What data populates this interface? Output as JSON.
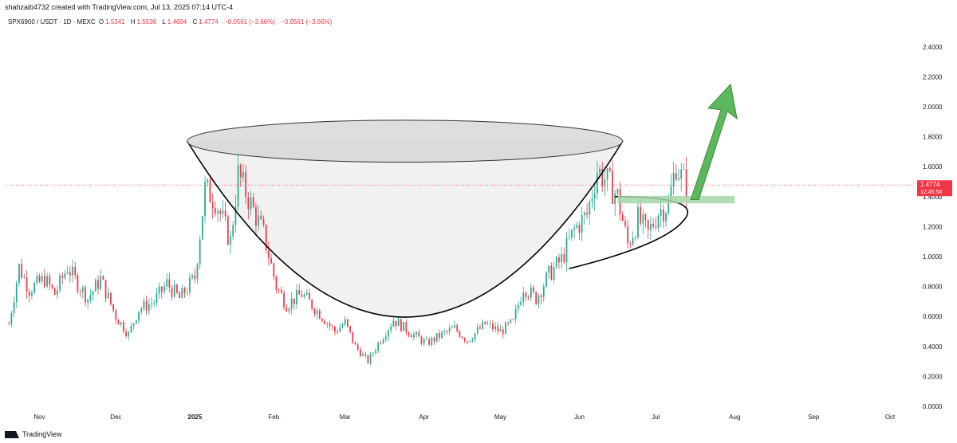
{
  "header": {
    "title": "shahzaib4732 created with TradingView.com, Jul 13, 2025 07:14 UTC-4",
    "symbol": "SPX6900 / USDT · 1D · MEXC",
    "o_label": "O",
    "o_value": "1.5341",
    "h_label": "H",
    "h_value": "1.5536",
    "l_label": "L",
    "l_value": "1.4604",
    "c_label": "C",
    "c_value": "1.4774",
    "change": "−0.0561 (−3.66%)",
    "change2": "−0.0561 (−3.66%)"
  },
  "footer": {
    "brand": "TradingView"
  },
  "price_badge": {
    "price": "1.4774",
    "countdown": "12:45:54"
  },
  "colors": {
    "up": "#22ab94",
    "down": "#f23645",
    "cup_fill": "#e6e6e6",
    "arrow": "#5cb85c",
    "zone": "#a5d6a7"
  },
  "chart_data": {
    "type": "candlestick",
    "title": "SPX6900 / USDT · 1D · MEXC",
    "y_ticks": [
      "2.4000",
      "2.2000",
      "2.0000",
      "1.8000",
      "1.6000",
      "1.4000",
      "1.2000",
      "1.0000",
      "0.8000",
      "0.6000",
      "0.4000",
      "0.2000",
      "0.0000"
    ],
    "ylim": [
      0,
      2.5
    ],
    "x_ticks": [
      "Nov",
      "Dec",
      "2025",
      "Feb",
      "Mar",
      "Apr",
      "May",
      "Jun",
      "Jul",
      "Aug",
      "Sep",
      "Oct"
    ],
    "x_tick_dates": [
      "2024-11-01",
      "2024-12-01",
      "2025-01-01",
      "2025-02-01",
      "2025-03-01",
      "2025-04-01",
      "2025-05-01",
      "2025-06-01",
      "2025-07-01",
      "2025-08-01",
      "2025-09-01",
      "2025-10-01"
    ],
    "date_range": [
      "2024-10-19",
      "2025-10-11"
    ],
    "last_price": 1.4774,
    "price_path": [
      [
        "2024-10-20",
        0.55
      ],
      [
        "2024-10-24",
        0.93
      ],
      [
        "2024-10-28",
        0.78
      ],
      [
        "2024-11-03",
        0.85
      ],
      [
        "2024-11-07",
        0.75
      ],
      [
        "2024-11-12",
        0.93
      ],
      [
        "2024-11-16",
        0.82
      ],
      [
        "2024-11-20",
        0.72
      ],
      [
        "2024-11-25",
        0.85
      ],
      [
        "2024-12-01",
        0.6
      ],
      [
        "2024-12-06",
        0.48
      ],
      [
        "2024-12-10",
        0.65
      ],
      [
        "2024-12-16",
        0.7
      ],
      [
        "2024-12-21",
        0.82
      ],
      [
        "2024-12-26",
        0.72
      ],
      [
        "2025-01-01",
        0.86
      ],
      [
        "2025-01-05",
        1.45
      ],
      [
        "2025-01-09",
        1.38
      ],
      [
        "2025-01-15",
        1.1
      ],
      [
        "2025-01-18",
        1.55
      ],
      [
        "2025-01-23",
        1.35
      ],
      [
        "2025-01-28",
        1.15
      ],
      [
        "2025-02-02",
        0.8
      ],
      [
        "2025-02-06",
        0.68
      ],
      [
        "2025-02-12",
        0.75
      ],
      [
        "2025-02-19",
        0.62
      ],
      [
        "2025-02-25",
        0.5
      ],
      [
        "2025-03-01",
        0.56
      ],
      [
        "2025-03-05",
        0.4
      ],
      [
        "2025-03-10",
        0.3
      ],
      [
        "2025-03-14",
        0.42
      ],
      [
        "2025-03-20",
        0.58
      ],
      [
        "2025-03-26",
        0.5
      ],
      [
        "2025-04-02",
        0.42
      ],
      [
        "2025-04-08",
        0.48
      ],
      [
        "2025-04-13",
        0.52
      ],
      [
        "2025-04-18",
        0.44
      ],
      [
        "2025-04-25",
        0.55
      ],
      [
        "2025-05-01",
        0.5
      ],
      [
        "2025-05-06",
        0.56
      ],
      [
        "2025-05-10",
        0.8
      ],
      [
        "2025-05-15",
        0.72
      ],
      [
        "2025-05-20",
        0.88
      ],
      [
        "2025-05-25",
        0.98
      ],
      [
        "2025-05-30",
        1.18
      ],
      [
        "2025-06-04",
        1.28
      ],
      [
        "2025-06-08",
        1.58
      ],
      [
        "2025-06-12",
        1.5
      ],
      [
        "2025-06-16",
        1.4
      ],
      [
        "2025-06-20",
        1.08
      ],
      [
        "2025-06-24",
        1.25
      ],
      [
        "2025-06-28",
        1.15
      ],
      [
        "2025-07-02",
        1.3
      ],
      [
        "2025-07-06",
        1.35
      ],
      [
        "2025-07-09",
        1.62
      ],
      [
        "2025-07-11",
        1.53
      ],
      [
        "2025-07-13",
        1.4774
      ]
    ],
    "annotations": [
      {
        "type": "cup-and-handle pattern"
      },
      {
        "type": "breakout zone",
        "level": 1.38
      },
      {
        "type": "up arrow"
      }
    ]
  }
}
